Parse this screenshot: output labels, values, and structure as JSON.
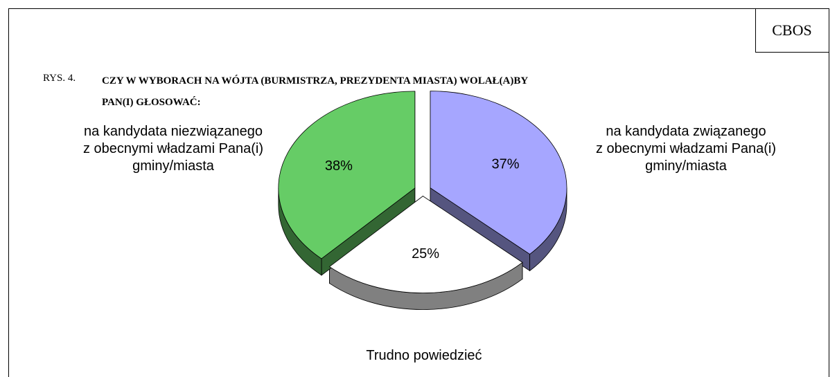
{
  "chart_data": {
    "type": "pie",
    "source": "CBOS",
    "figure_label": "RYS. 4.",
    "title": "CZY W WYBORACH NA WÓJTA (BURMISTRZA, PREZYDENTA MIASTA) WOLAŁ(A)BY\nPAN(I) GŁOSOWAĆ:",
    "categories": [
      "na kandydata związanego\nz obecnymi władzami Pana(i)\ngminy/miasta",
      "Trudno powiedzieć",
      "na kandydata niezwiązanego\nz obecnymi władzami Pana(i)\ngminy/miasta"
    ],
    "values": [
      37,
      25,
      38
    ],
    "value_labels": [
      "37%",
      "25%",
      "38%"
    ],
    "colors": [
      "#a6a6ff",
      "#ffffff",
      "#66cc66"
    ],
    "side_colors": [
      "#55557f",
      "#808080",
      "#336633"
    ],
    "explode": true
  }
}
